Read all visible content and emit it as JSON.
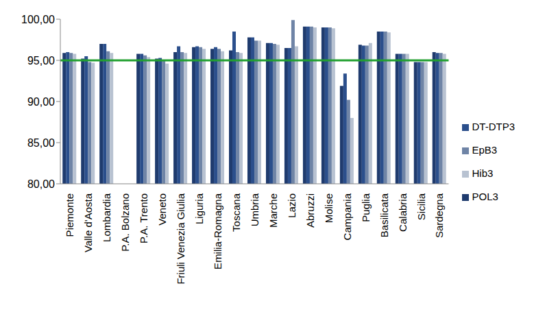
{
  "chart_data": {
    "type": "bar",
    "categories": [
      "Piemonte",
      "Valle d'Aosta",
      "Lombardia",
      "P.A. Bolzano",
      "P.A. Trento",
      "Veneto",
      "Friuli Venezia Giulia",
      "Liguria",
      "Emilia-Romagna",
      "Toscana",
      "Umbria",
      "Marche",
      "Lazio",
      "Abruzzi",
      "Molise",
      "Campania",
      "Puglia",
      "Basilicata",
      "Calabria",
      "Sicilia",
      "Sardegna"
    ],
    "series": [
      {
        "name": "POL3",
        "color": "#1f3b6e",
        "values": [
          95.9,
          95.2,
          97.0,
          null,
          95.8,
          95.2,
          96.0,
          96.6,
          96.4,
          96.2,
          97.8,
          97.1,
          96.5,
          99.1,
          99.0,
          91.9,
          96.9,
          98.5,
          95.8,
          94.8,
          96.0
        ]
      },
      {
        "name": "DT-DTP3",
        "color": "#2b4f8c",
        "values": [
          96.0,
          95.5,
          97.0,
          null,
          95.8,
          95.3,
          96.7,
          96.7,
          96.6,
          98.5,
          97.8,
          97.1,
          96.5,
          99.1,
          99.0,
          93.4,
          96.8,
          98.5,
          95.8,
          94.8,
          95.9
        ]
      },
      {
        "name": "EpB3",
        "color": "#6f84a6",
        "values": [
          95.9,
          94.8,
          96.1,
          null,
          95.6,
          95.0,
          96.0,
          96.6,
          96.4,
          96.0,
          97.4,
          97.0,
          99.9,
          99.1,
          99.0,
          90.2,
          96.8,
          98.5,
          95.8,
          94.8,
          95.9
        ]
      },
      {
        "name": "Hib3",
        "color": "#b8c2d1",
        "values": [
          95.8,
          94.7,
          95.9,
          null,
          95.4,
          94.6,
          95.9,
          96.4,
          96.1,
          95.9,
          97.4,
          96.9,
          96.7,
          99.0,
          98.9,
          88.0,
          97.1,
          98.4,
          95.8,
          94.8,
          95.8
        ]
      }
    ],
    "ylim": [
      80,
      100
    ],
    "yticks": [
      {
        "value": 80,
        "label": "80,00"
      },
      {
        "value": 85,
        "label": "85,00"
      },
      {
        "value": 90,
        "label": "90,00"
      },
      {
        "value": 95,
        "label": "95,00"
      },
      {
        "value": 100,
        "label": "100,00"
      }
    ],
    "target": 95,
    "grid": false,
    "legend": "right"
  }
}
